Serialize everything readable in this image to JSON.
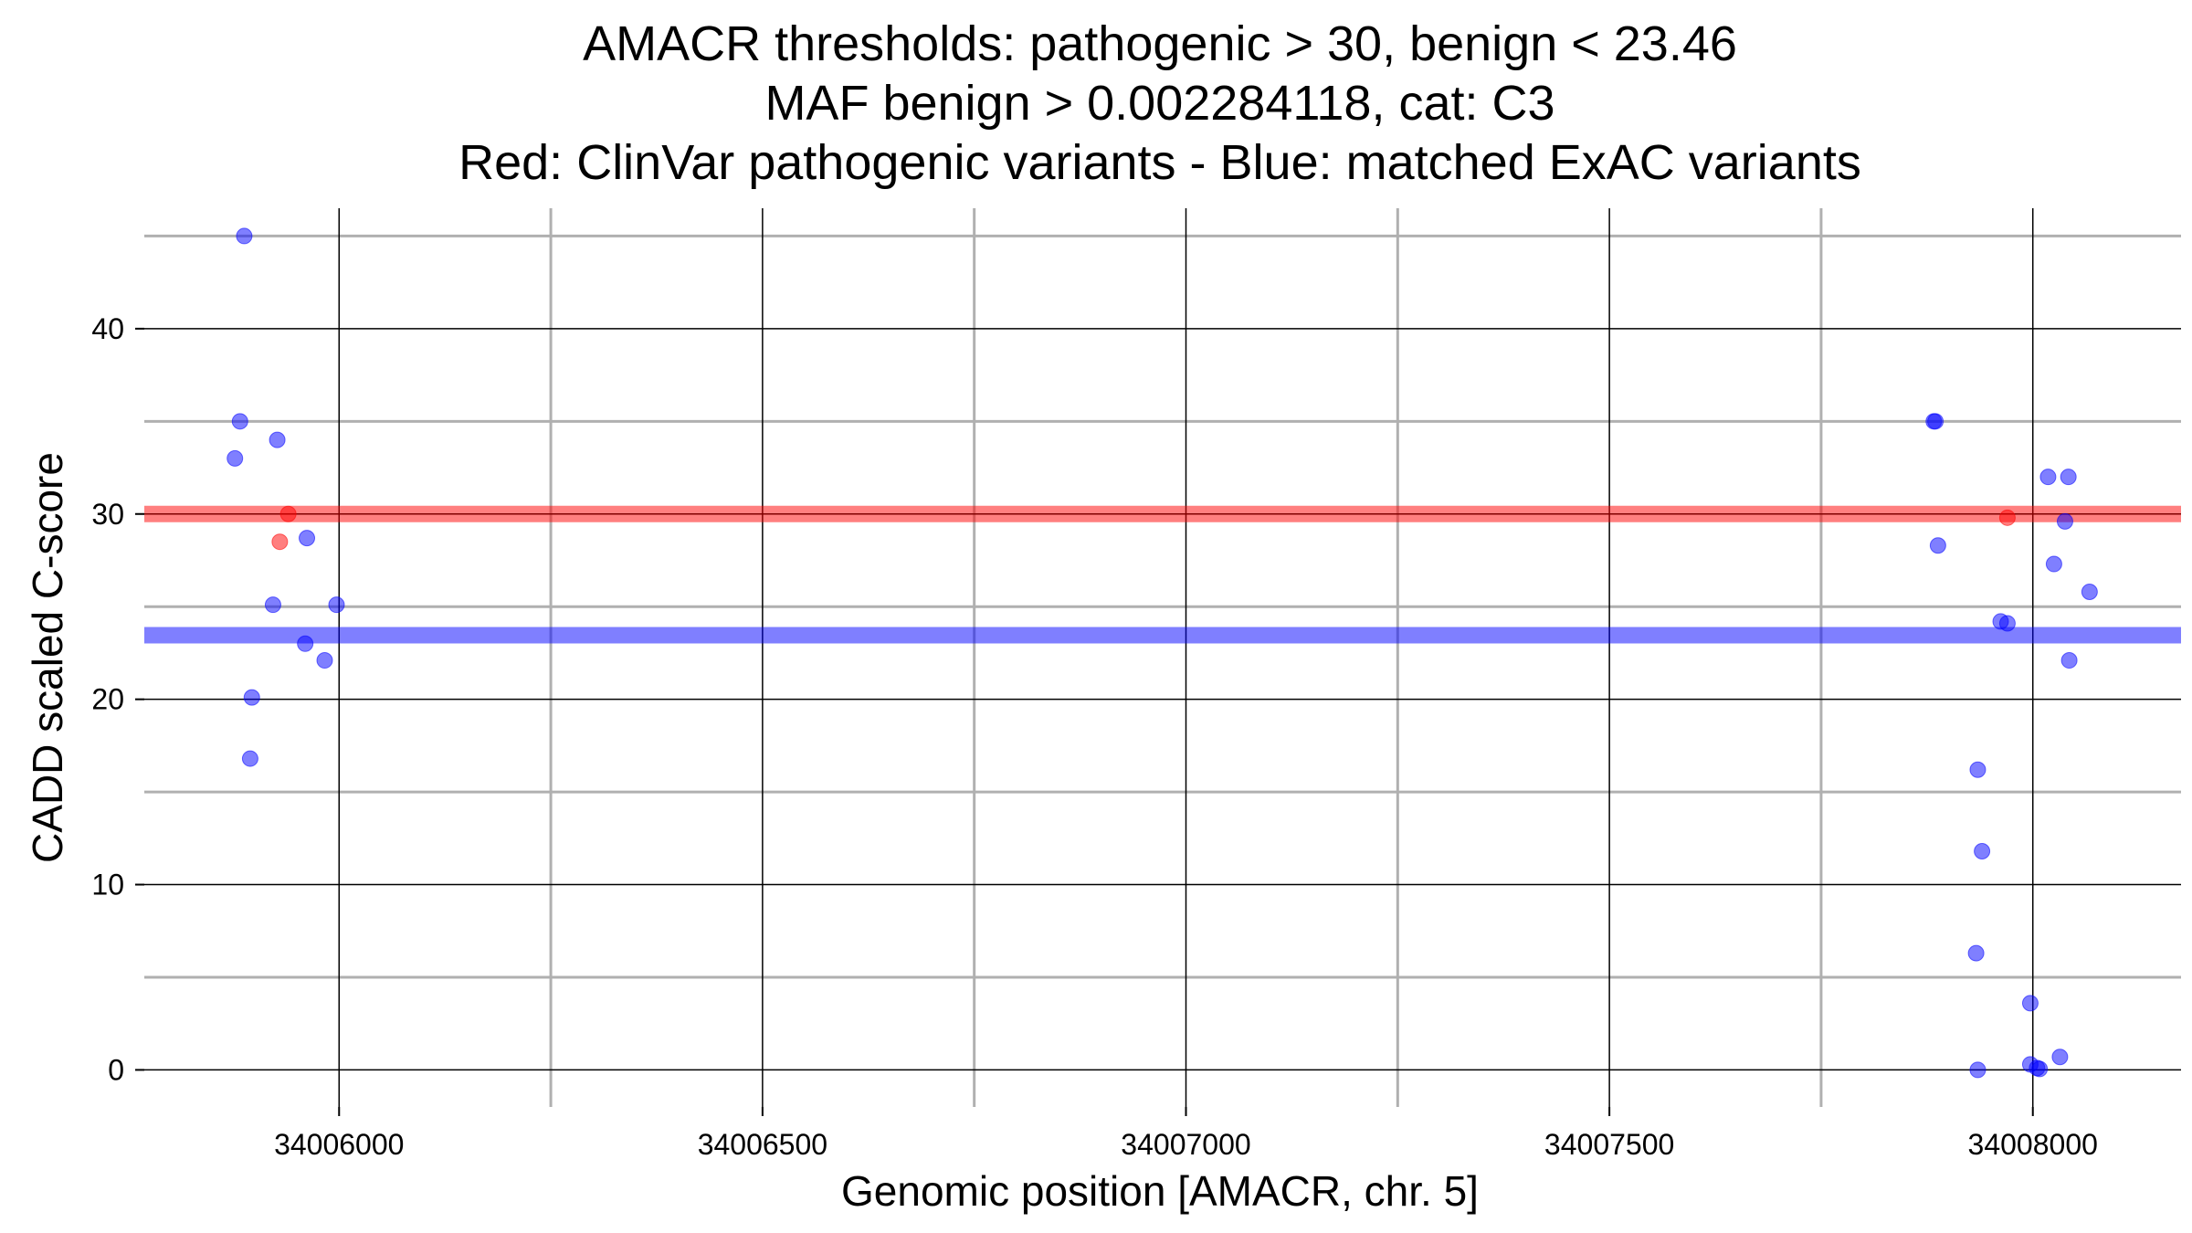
{
  "chart_data": {
    "type": "scatter",
    "title": [
      "AMACR thresholds: pathogenic > 30, benign < 23.46",
      "MAF benign > 0.002284118, cat: C3",
      "Red: ClinVar pathogenic variants - Blue: matched ExAC variants"
    ],
    "xlabel": "Genomic position [AMACR, chr. 5]",
    "ylabel": "CADD scaled C-score",
    "xlim": [
      34005770,
      34008175
    ],
    "ylim": [
      -2,
      46.5
    ],
    "x_major_ticks": [
      34006000,
      34006500,
      34007000,
      34007500,
      34008000
    ],
    "x_tick_labels": [
      "34006000",
      "34006500",
      "34007000",
      "34007500",
      "34008000"
    ],
    "x_minor_ticks": [
      34006250,
      34006750,
      34007250,
      34007750
    ],
    "y_major_ticks": [
      0,
      10,
      20,
      30,
      40
    ],
    "y_tick_labels": [
      "0",
      "10",
      "20",
      "30",
      "40"
    ],
    "y_minor_ticks": [
      5,
      15,
      25,
      35,
      45
    ],
    "thresholds": [
      {
        "name": "pathogenic",
        "value": 30,
        "color": "#ff0000"
      },
      {
        "name": "benign",
        "value": 23.46,
        "color": "#0000ff"
      }
    ],
    "series": [
      {
        "name": "ClinVar pathogenic variants",
        "color": "#ff0000",
        "points": [
          {
            "x": 34005930,
            "y": 28.5
          },
          {
            "x": 34005940,
            "y": 30.0
          },
          {
            "x": 34007970,
            "y": 29.8
          }
        ]
      },
      {
        "name": "matched ExAC variants",
        "color": "#0000ff",
        "points": [
          {
            "x": 34005888,
            "y": 45.0
          },
          {
            "x": 34005883,
            "y": 35.0
          },
          {
            "x": 34005877,
            "y": 33.0
          },
          {
            "x": 34005927,
            "y": 34.0
          },
          {
            "x": 34005962,
            "y": 28.7
          },
          {
            "x": 34005922,
            "y": 25.1
          },
          {
            "x": 34005997,
            "y": 25.1
          },
          {
            "x": 34005960,
            "y": 23.0
          },
          {
            "x": 34005983,
            "y": 22.1
          },
          {
            "x": 34005897,
            "y": 20.1
          },
          {
            "x": 34005895,
            "y": 16.8
          },
          {
            "x": 34007883,
            "y": 35.0
          },
          {
            "x": 34007885,
            "y": 35.0
          },
          {
            "x": 34007888,
            "y": 28.3
          },
          {
            "x": 34007962,
            "y": 24.2
          },
          {
            "x": 34007970,
            "y": 24.1
          },
          {
            "x": 34008018,
            "y": 32.0
          },
          {
            "x": 34008042,
            "y": 32.0
          },
          {
            "x": 34008038,
            "y": 29.6
          },
          {
            "x": 34008025,
            "y": 27.3
          },
          {
            "x": 34008067,
            "y": 25.8
          },
          {
            "x": 34008043,
            "y": 22.1
          },
          {
            "x": 34007935,
            "y": 16.2
          },
          {
            "x": 34007940,
            "y": 11.8
          },
          {
            "x": 34007933,
            "y": 6.3
          },
          {
            "x": 34007997,
            "y": 3.6
          },
          {
            "x": 34008032,
            "y": 0.7
          },
          {
            "x": 34007997,
            "y": 0.3
          },
          {
            "x": 34008005,
            "y": 0.1
          },
          {
            "x": 34008008,
            "y": 0.05
          },
          {
            "x": 34007935,
            "y": 0.0
          }
        ]
      }
    ]
  }
}
